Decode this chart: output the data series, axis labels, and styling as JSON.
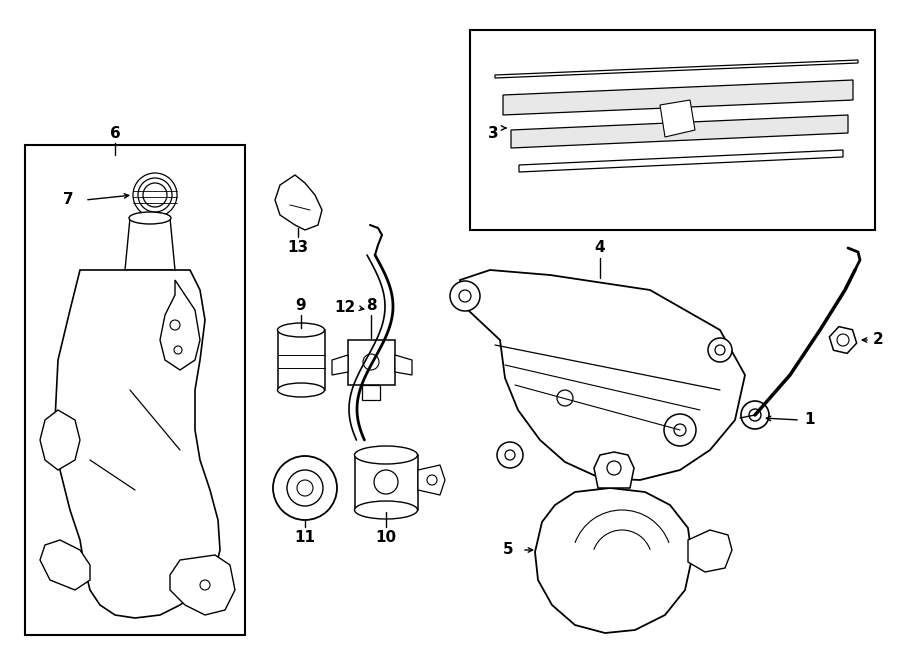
{
  "bg_color": "#ffffff",
  "line_color": "#000000",
  "fig_width": 9.0,
  "fig_height": 6.61,
  "dpi": 100,
  "lw": 1.1,
  "fontsize": 11
}
